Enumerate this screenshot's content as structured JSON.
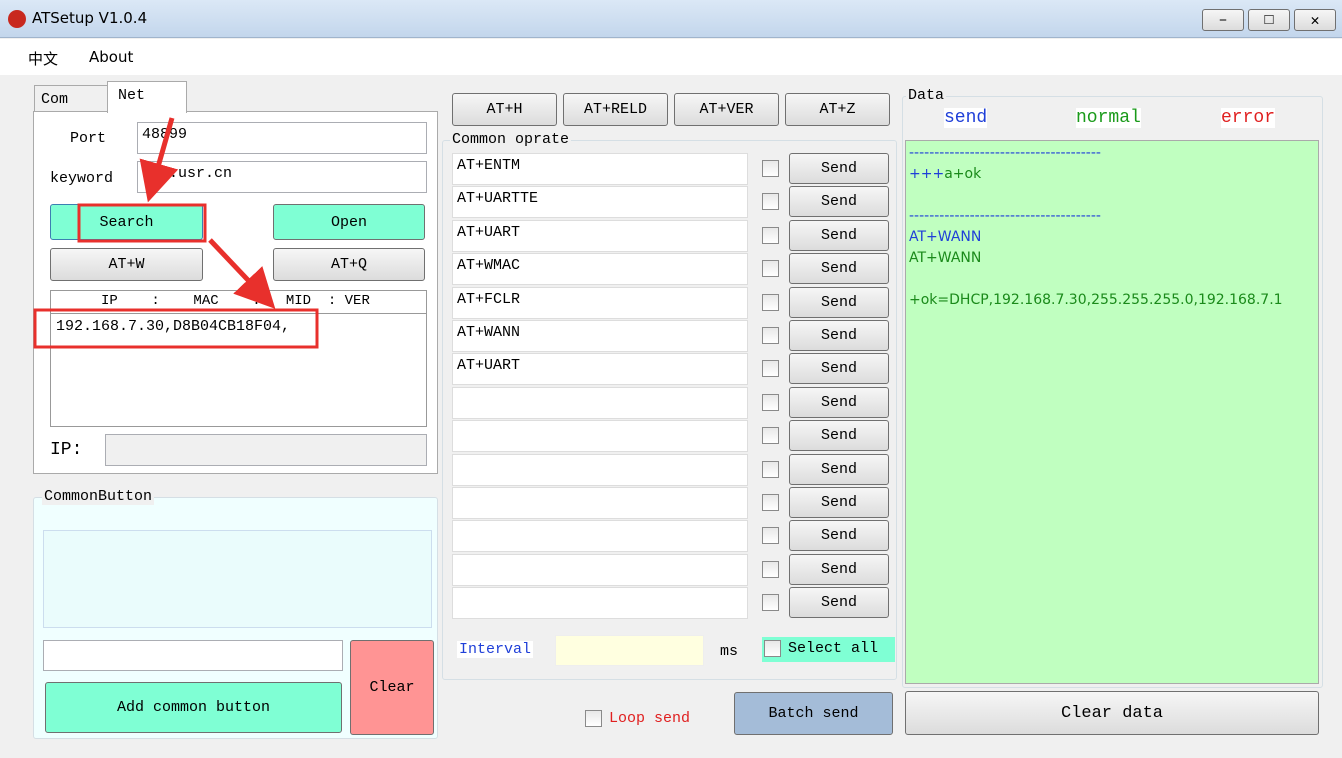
{
  "window": {
    "title": "ATSetup V1.0.4"
  },
  "menu": [
    "中文",
    "About"
  ],
  "tabs": [
    "Com",
    "Net"
  ],
  "net": {
    "port_label": "Port",
    "port": "48899",
    "keyword_label": "keyword",
    "keyword": "www.usr.cn",
    "search": "Search",
    "open": "Open",
    "at_w": "AT+W",
    "at_q": "AT+Q",
    "list_header": "IP    :    MAC    :   MID  : VER",
    "list_items": [
      "192.168.7.30,D8B04CB18F04,"
    ],
    "ip_label": "IP:"
  },
  "common_button": {
    "title": "CommonButton",
    "add": "Add common button",
    "clear": "Clear"
  },
  "top_buttons": [
    "AT+H",
    "AT+RELD",
    "AT+VER",
    "AT+Z"
  ],
  "common_operate": {
    "title": "Common oprate",
    "commands": [
      "AT+ENTM",
      "AT+UARTTE",
      "AT+UART",
      "AT+WMAC",
      "AT+FCLR",
      "AT+WANN",
      "AT+UART"
    ],
    "send": "Send",
    "interval_label": "Interval",
    "ms": "ms",
    "select_all": "Select all",
    "loop_send": "Loop send",
    "batch_send": "Batch send"
  },
  "data_panel": {
    "title": "Data",
    "legend": [
      {
        "text": "send",
        "color": "#1f3fd8"
      },
      {
        "text": "normal",
        "color": "#1a9a1a"
      },
      {
        "text": "error",
        "color": "#e02020"
      }
    ],
    "lines": [
      [
        {
          "text": "--------------------------------------",
          "color": "#1f3fd8"
        }
      ],
      [
        {
          "text": "+++",
          "color": "#1f3fd8"
        },
        {
          "text": "a+ok",
          "color": "#1a8a1a"
        }
      ],
      [
        {
          "text": "--------------------------------------",
          "color": "#1f3fd8"
        }
      ],
      [
        {
          "text": "AT+WANN",
          "color": "#1f3fd8"
        }
      ],
      [
        {
          "text": "AT+WANN",
          "color": "#1a8a1a"
        }
      ],
      [
        {
          "text": "+ok=DHCP,192.168.7.30,255.255.255.0,192.168.7.1",
          "color": "#1a8a1a"
        }
      ]
    ],
    "clear": "Clear data"
  }
}
